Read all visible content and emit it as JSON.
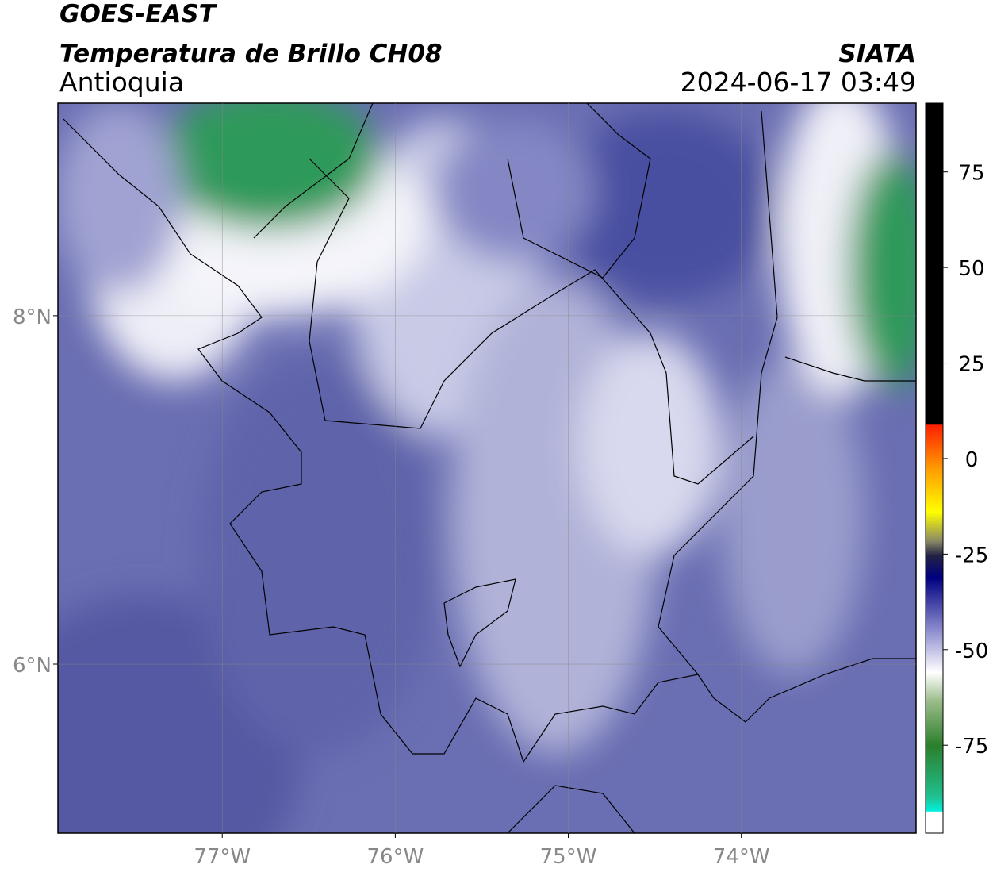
{
  "header": {
    "satellite": "GOES-EAST",
    "product": "Temperatura de Brillo CH08",
    "agency": "SIATA",
    "region": "Antioquia",
    "datetime": "2024-06-17 03:49"
  },
  "map": {
    "xlim": [
      -77.95,
      -72.99
    ],
    "ylim": [
      5.03,
      9.22
    ],
    "xticks": [
      {
        "value": -77,
        "label": "77°W"
      },
      {
        "value": -76,
        "label": "76°W"
      },
      {
        "value": -75,
        "label": "75°W"
      },
      {
        "value": -74,
        "label": "74°W"
      }
    ],
    "yticks": [
      {
        "value": 8,
        "label": "8°N"
      },
      {
        "value": 6,
        "label": "6°N"
      }
    ],
    "grid": true
  },
  "colorbar": {
    "lim": [
      -98,
      93
    ],
    "ticks": [
      75,
      50,
      25,
      0,
      -25,
      -50,
      -75
    ]
  }
}
